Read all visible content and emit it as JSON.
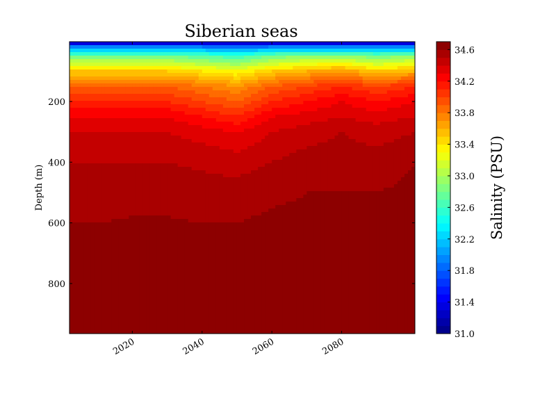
{
  "chart_data": {
    "type": "heatmap",
    "subtype": "filled-contour",
    "title": "Siberian seas",
    "xlabel": "",
    "ylabel": "Depth (m)",
    "xlim": [
      2002,
      2101
    ],
    "ylim": [
      965,
      3
    ],
    "y_inverted": true,
    "x_ticks": [
      2020,
      2040,
      2060,
      2080
    ],
    "x_tick_labels": [
      "2020",
      "2040",
      "2060",
      "2080"
    ],
    "y_ticks": [
      200,
      400,
      600,
      800
    ],
    "y_tick_labels": [
      "200",
      "400",
      "600",
      "800"
    ],
    "colorbar": {
      "label": "Salinity (PSU)",
      "min": 31.0,
      "max": 34.7,
      "ticks": [
        31.0,
        31.4,
        31.8,
        32.2,
        32.6,
        33.0,
        33.4,
        33.8,
        34.2,
        34.6
      ],
      "tick_labels": [
        "31.0",
        "31.4",
        "31.8",
        "32.2",
        "32.6",
        "33.0",
        "33.4",
        "33.8",
        "34.2",
        "34.6"
      ],
      "colormap": "jet",
      "level_step": 0.1
    },
    "years": [
      2002,
      2010,
      2020,
      2030,
      2040,
      2050,
      2060,
      2070,
      2080,
      2090,
      2101
    ],
    "depths": [
      3,
      20,
      50,
      100,
      150,
      200,
      250,
      300,
      400,
      500,
      600,
      700,
      800,
      900,
      965
    ],
    "salinity": [
      [
        31.1,
        31.1,
        31.1,
        31.1,
        31.1,
        31.1,
        31.1,
        31.1,
        31.1,
        31.1,
        31.1
      ],
      [
        31.9,
        31.9,
        31.9,
        31.9,
        31.9,
        31.8,
        31.9,
        31.9,
        31.9,
        31.9,
        31.9
      ],
      [
        32.8,
        32.8,
        32.8,
        32.8,
        32.7,
        32.6,
        32.8,
        32.9,
        32.9,
        32.8,
        32.9
      ],
      [
        33.5,
        33.5,
        33.5,
        33.5,
        33.4,
        33.3,
        33.5,
        33.6,
        33.7,
        33.5,
        33.6
      ],
      [
        33.9,
        33.9,
        33.9,
        33.9,
        33.8,
        33.7,
        33.9,
        34.0,
        34.1,
        34.0,
        34.1
      ],
      [
        34.1,
        34.1,
        34.1,
        34.1,
        34.0,
        33.9,
        34.1,
        34.2,
        34.3,
        34.2,
        34.3
      ],
      [
        34.3,
        34.3,
        34.3,
        34.3,
        34.2,
        34.1,
        34.3,
        34.35,
        34.4,
        34.35,
        34.4
      ],
      [
        34.4,
        34.4,
        34.4,
        34.4,
        34.35,
        34.3,
        34.4,
        34.45,
        34.5,
        34.45,
        34.5
      ],
      [
        34.5,
        34.5,
        34.5,
        34.5,
        34.48,
        34.45,
        34.5,
        34.55,
        34.55,
        34.55,
        34.6
      ],
      [
        34.55,
        34.55,
        34.56,
        34.56,
        34.55,
        34.55,
        34.58,
        34.6,
        34.6,
        34.6,
        34.62
      ],
      [
        34.6,
        34.6,
        34.61,
        34.61,
        34.6,
        34.6,
        34.62,
        34.62,
        34.63,
        34.62,
        34.63
      ],
      [
        34.62,
        34.62,
        34.62,
        34.62,
        34.62,
        34.62,
        34.63,
        34.63,
        34.64,
        34.64,
        34.66
      ],
      [
        34.63,
        34.63,
        34.63,
        34.63,
        34.63,
        34.63,
        34.64,
        34.64,
        34.66,
        34.65,
        34.68
      ],
      [
        34.64,
        34.65,
        34.66,
        34.66,
        34.65,
        34.65,
        34.66,
        34.66,
        34.69,
        34.66,
        34.7
      ],
      [
        34.66,
        34.67,
        34.67,
        34.67,
        34.67,
        34.68,
        34.68,
        34.7,
        34.7,
        34.68,
        34.7
      ]
    ]
  }
}
